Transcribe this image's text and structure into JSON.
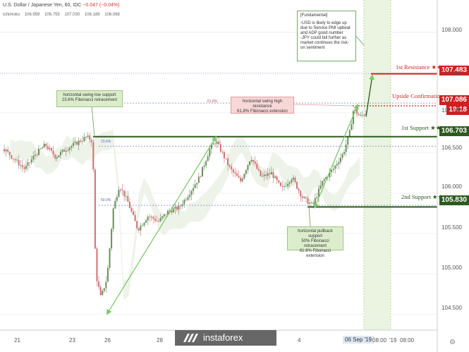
{
  "symbol": {
    "name": "U.S. Dollar / Japanese Yen",
    "interval": "60",
    "source": "IDC",
    "change": "−0.047 (−0.04%)"
  },
  "indicator": {
    "name": "Ichimoku",
    "values": [
      "106.959",
      "106.755",
      "107.030",
      "106.189",
      "106.068"
    ]
  },
  "colors": {
    "resistance": "#d11f1f",
    "support": "#2d5a1f",
    "trendline": "#7cc86a",
    "fib": "#5566bb",
    "bull_candle": "#6c8c5c",
    "bear_candle": "#d07070"
  },
  "levels": {
    "r1": {
      "label": "1st Resistance ★★",
      "price": "107.483"
    },
    "upside": {
      "label": "Upside Confirmation",
      "price": "107.086"
    },
    "time": "19:18",
    "s1": {
      "label": "1st Support ★★",
      "price": "106.703"
    },
    "s2": {
      "label": "2nd Support ★★",
      "price": "105.830"
    }
  },
  "annotations": {
    "swing_low": [
      "horizontal swing low support",
      "23.6% Fibonacci retracement"
    ],
    "swing_high": [
      "horizontal swing high resistance",
      "61.8% Fibonacci extension"
    ],
    "pullback": [
      "horizontal pullback support",
      "50% Fibonacci retracement",
      "61.8% Fibonacci extension"
    ],
    "fundamental": {
      "title": "[Fundamental]",
      "lines": [
        "-USD is likely to edge up",
        "due to Service PMI upbeat",
        "and ADP good number",
        "-JPY could fall further as",
        "market continues the risk-",
        "on sentiment"
      ]
    },
    "fib_labels": [
      "61.8%",
      "23.6%",
      "50.0%"
    ]
  },
  "chart_data": {
    "type": "candlestick",
    "title": "U.S. Dollar / Japanese Yen, 60, IDC",
    "ylim": [
      104.3,
      108.4
    ],
    "yticks": [
      104.5,
      105.0,
      105.5,
      106.0,
      106.5,
      107.0,
      107.5,
      108.0
    ],
    "ytick_labels": [
      "104.500",
      "105.000",
      "105.500",
      "106.000",
      "106.500",
      "107.000",
      "107.500",
      "108.000"
    ],
    "xticks": [
      {
        "label": "21",
        "x": 0
      },
      {
        "label": "23",
        "x": 3
      },
      {
        "label": "26",
        "x": 5
      },
      {
        "label": "28",
        "x": 8
      },
      {
        "label": "4",
        "x": 15
      },
      {
        "label": "06 Sep '19",
        "x": 17.5
      },
      {
        "label": "08:00",
        "x": 18.5
      },
      {
        "label": "'19",
        "x": 19
      },
      {
        "label": "08:00",
        "x": 19.5
      }
    ],
    "x_label": "",
    "series": [
      {
        "name": "USDJPY close path",
        "points": [
          [
            0,
            106.55
          ],
          [
            0.5,
            106.42
          ],
          [
            1,
            106.3
          ],
          [
            1.5,
            106.48
          ],
          [
            2,
            106.6
          ],
          [
            2.5,
            106.45
          ],
          [
            3,
            106.55
          ],
          [
            3.5,
            106.62
          ],
          [
            4,
            106.7
          ],
          [
            4.3,
            106.65
          ],
          [
            4.45,
            105.0
          ],
          [
            4.7,
            104.7
          ],
          [
            5,
            104.95
          ],
          [
            5.3,
            105.8
          ],
          [
            5.6,
            106.1
          ],
          [
            6,
            105.9
          ],
          [
            6.5,
            105.55
          ],
          [
            7,
            105.72
          ],
          [
            7.5,
            105.65
          ],
          [
            8,
            105.78
          ],
          [
            8.5,
            105.82
          ],
          [
            9,
            106.0
          ],
          [
            9.5,
            106.2
          ],
          [
            10,
            106.55
          ],
          [
            10.3,
            106.65
          ],
          [
            10.7,
            106.45
          ],
          [
            11,
            106.3
          ],
          [
            11.5,
            106.15
          ],
          [
            12,
            106.45
          ],
          [
            12.5,
            106.2
          ],
          [
            13,
            106.25
          ],
          [
            13.5,
            106.05
          ],
          [
            14,
            106.2
          ],
          [
            14.5,
            105.95
          ],
          [
            15,
            105.85
          ],
          [
            15.5,
            106.15
          ],
          [
            16,
            106.3
          ],
          [
            16.5,
            106.5
          ],
          [
            16.8,
            106.75
          ],
          [
            17,
            107.05
          ],
          [
            17.3,
            106.95
          ],
          [
            17.6,
            107.0
          ]
        ]
      }
    ],
    "horizontal_lines": [
      {
        "name": "1st Resistance",
        "value": 107.483
      },
      {
        "name": "Upside Confirmation",
        "value": 107.086
      },
      {
        "name": "1st Support",
        "value": 106.703
      },
      {
        "name": "2nd Support",
        "value": 105.83
      }
    ],
    "fib_lines": [
      {
        "label": "23.6%",
        "value": 106.585
      },
      {
        "label": "50.0%",
        "value": 105.85
      },
      {
        "label": "61.8%",
        "value": 107.12
      }
    ],
    "trendlines": [
      {
        "from": [
          5,
          104.5
        ],
        "to": [
          10.3,
          106.7
        ]
      },
      {
        "from": [
          15.1,
          105.82
        ],
        "to": [
          17.2,
          107.1
        ]
      }
    ]
  }
}
